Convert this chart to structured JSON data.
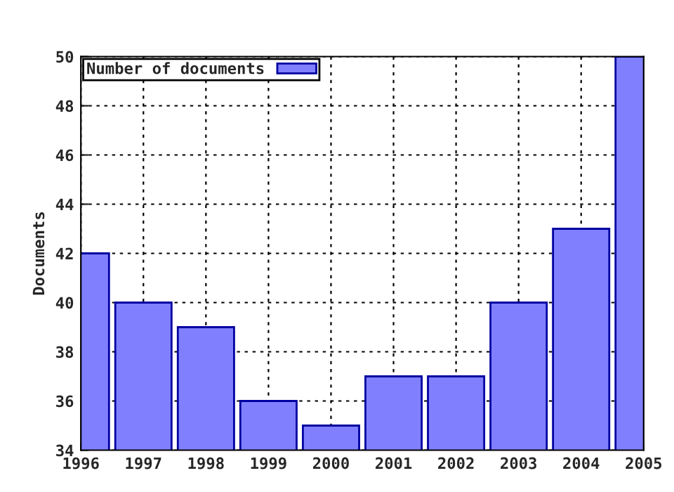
{
  "chart_data": {
    "type": "bar",
    "ylabel": "Documents",
    "x": [
      1996,
      1997,
      1998,
      1999,
      2000,
      2001,
      2002,
      2003,
      2004,
      2005
    ],
    "series": [
      {
        "name": "Number of documents",
        "color": "#8080ff",
        "values": [
          42,
          40,
          39,
          36,
          35,
          37,
          37,
          40,
          43,
          50
        ]
      }
    ],
    "xlim": [
      1996,
      2005
    ],
    "xticks": [
      1996,
      1997,
      1998,
      1999,
      2000,
      2001,
      2002,
      2003,
      2004,
      2005
    ],
    "ylim": [
      34,
      50
    ],
    "yticks": [
      34,
      36,
      38,
      40,
      42,
      44,
      46,
      48,
      50
    ],
    "grid": true,
    "legend": "top left"
  }
}
